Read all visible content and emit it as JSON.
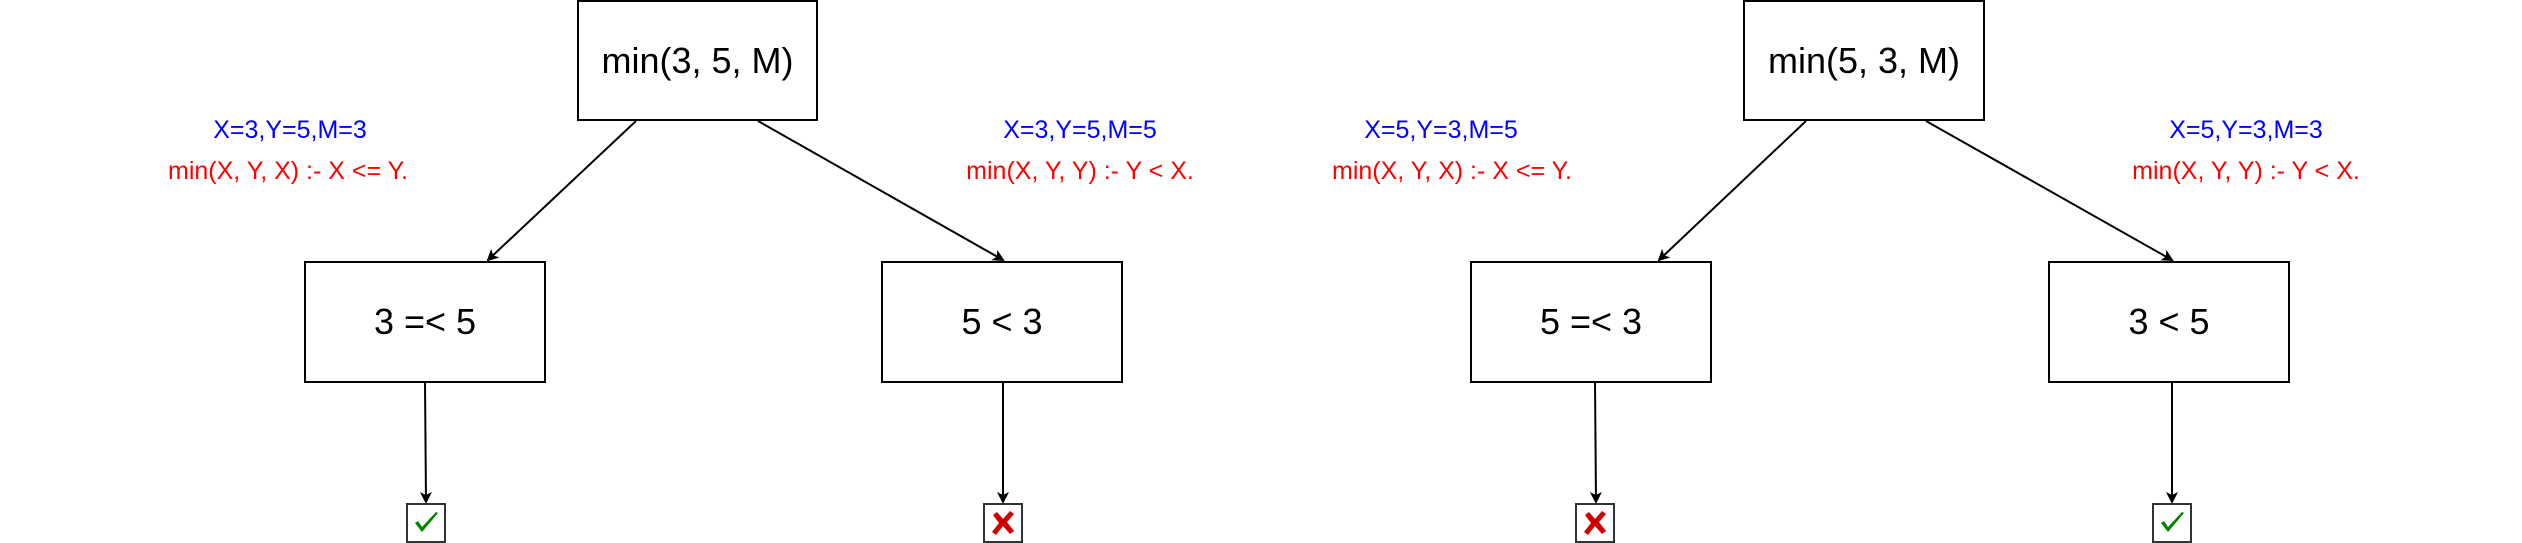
{
  "trees": [
    {
      "root": "min(3, 5, M)",
      "left": {
        "bindings": "X=3,Y=5,M=3",
        "clause": "min(X, Y, X) :- X <= Y.",
        "goal": "3 =< 5",
        "result": "success",
        "result_icon": "check-icon"
      },
      "right": {
        "bindings": "X=3,Y=5,M=5",
        "clause": "min(X, Y, Y) :- Y < X.",
        "goal": "5 < 3",
        "result": "failure",
        "result_icon": "cross-icon"
      }
    },
    {
      "root": "min(5, 3, M)",
      "left": {
        "bindings": "X=5,Y=3,M=5",
        "clause": "min(X, Y, X) :- X <= Y.",
        "goal": "5 =< 3",
        "result": "failure",
        "result_icon": "cross-icon"
      },
      "right": {
        "bindings": "X=5,Y=3,M=3",
        "clause": "min(X, Y, Y) :- Y < X.",
        "goal": "3 < 5",
        "result": "success",
        "result_icon": "check-icon"
      }
    }
  ],
  "colors": {
    "bindings": "#0000ff",
    "clause": "#ff0000",
    "check": "#008000",
    "cross": "#cc0000"
  }
}
